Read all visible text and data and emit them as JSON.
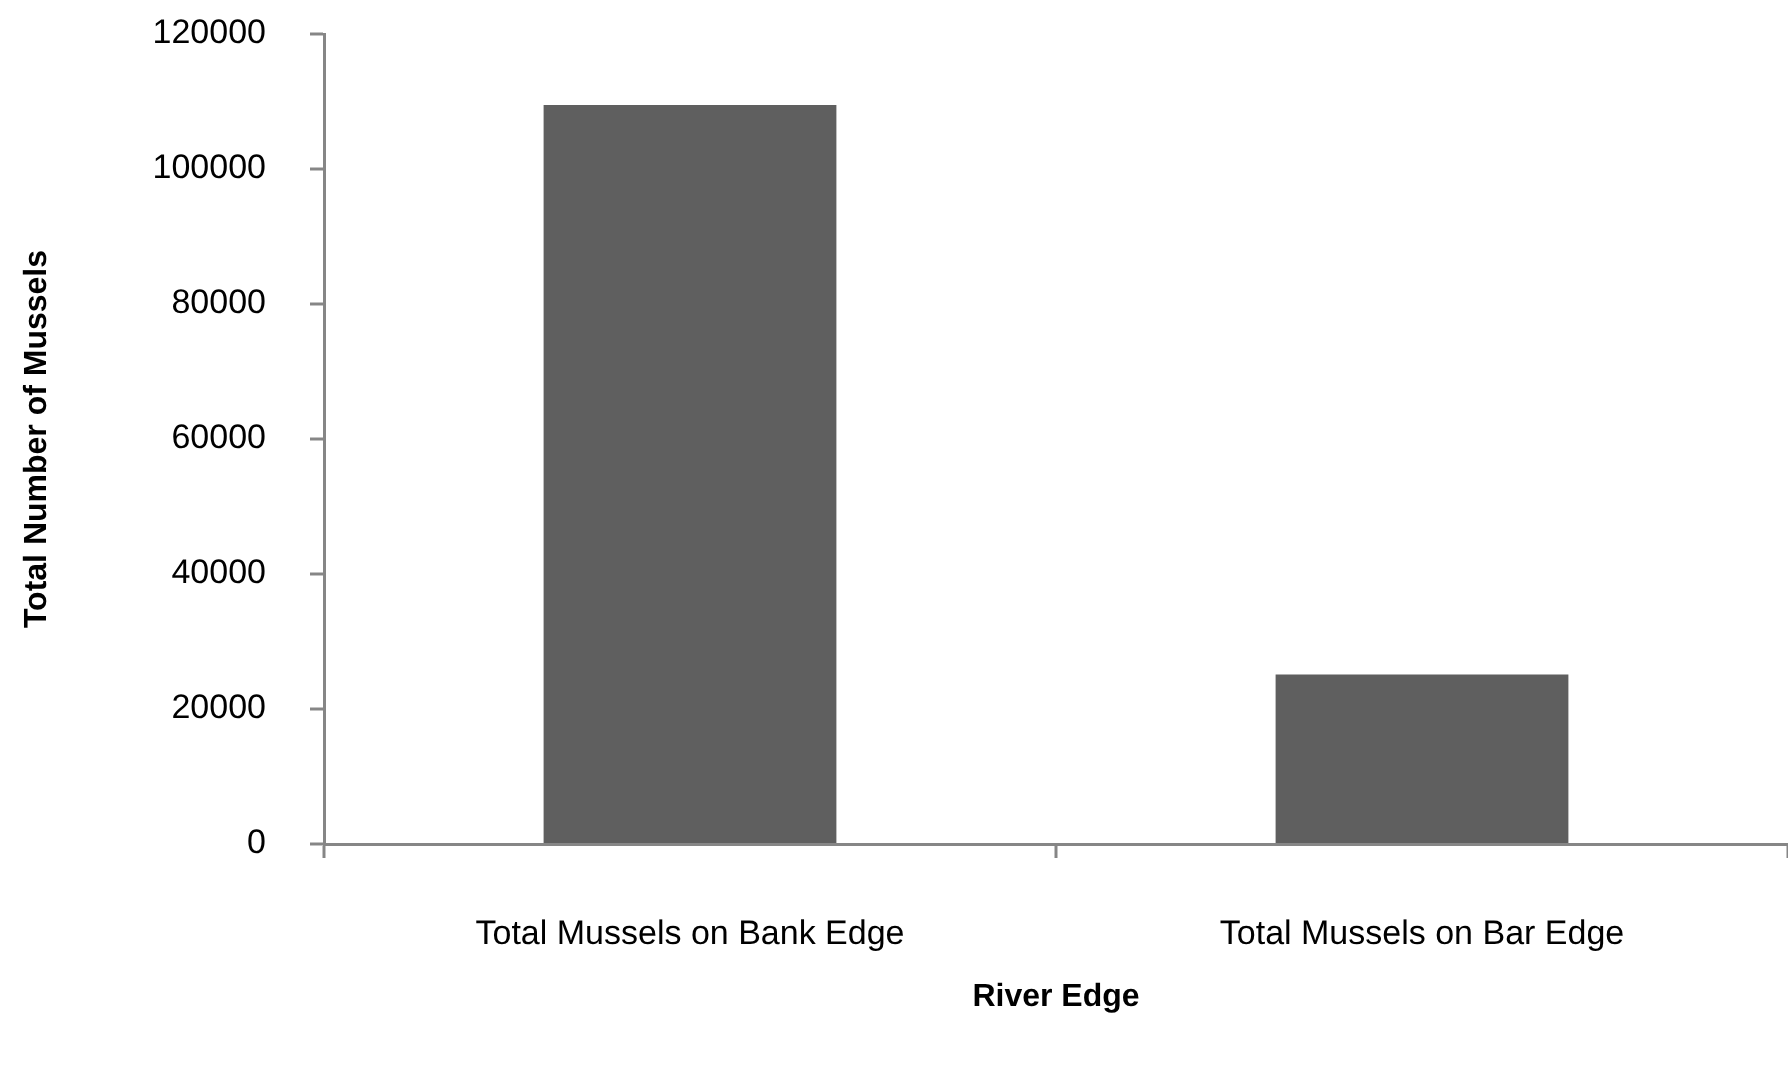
{
  "chart_data": {
    "type": "bar",
    "xlabel": "River Edge",
    "ylabel": "Total Number of Mussels",
    "categories": [
      "Total Mussels on Bank Edge",
      "Total Mussels on Bar Edge"
    ],
    "values": [
      109500,
      25100
    ],
    "color": "#5f5f5f",
    "ylim": [
      0,
      120000
    ],
    "yticks": [
      0,
      20000,
      40000,
      60000,
      80000,
      100000,
      120000
    ],
    "grid": false,
    "legend": false
  }
}
